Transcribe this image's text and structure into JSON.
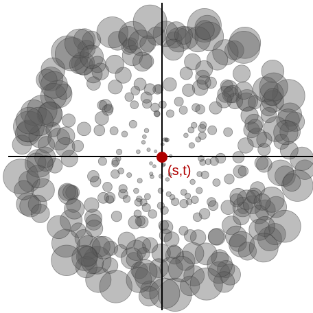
{
  "diagram": {
    "center_label": "(s,t)",
    "colors": {
      "background": "#ffffff",
      "axes": "#000000",
      "center_point": "#b00000",
      "label": "#b00000",
      "circle_fill": "#5a5a5a",
      "circle_stroke": "#3a3a3a"
    },
    "circle_opacity": 0.4
  }
}
